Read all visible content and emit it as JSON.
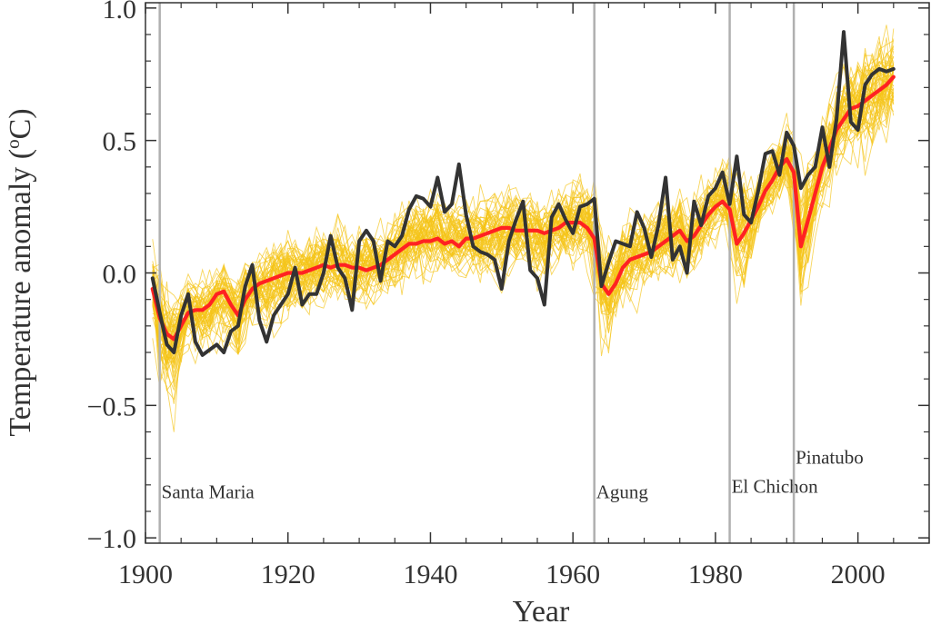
{
  "chart_data": {
    "type": "line",
    "title": "",
    "xlabel": "Year",
    "ylabel": "Temperature anomaly (°C)",
    "ylabel_parts": {
      "main": "Temperature anomaly (",
      "sup": "o",
      "end": "C)"
    },
    "xlim": [
      1900,
      2010
    ],
    "ylim": [
      -1.02,
      1.02
    ],
    "x_ticks": [
      {
        "value": 1900,
        "label": "1900"
      },
      {
        "value": 1920,
        "label": "1920"
      },
      {
        "value": 1940,
        "label": "1940"
      },
      {
        "value": 1960,
        "label": "1960"
      },
      {
        "value": 1980,
        "label": "1980"
      },
      {
        "value": 2000,
        "label": "2000"
      }
    ],
    "y_ticks": [
      {
        "value": -1.0,
        "label": "−1.0"
      },
      {
        "value": -0.5,
        "label": "−0.5"
      },
      {
        "value": 0.0,
        "label": "0.0"
      },
      {
        "value": 0.5,
        "label": "0.5"
      },
      {
        "value": 1.0,
        "label": "1.0"
      }
    ],
    "grid": false,
    "volcanoes": [
      {
        "name": "Santa Maria",
        "year": 1902,
        "label_y": -0.85
      },
      {
        "name": "Agung",
        "year": 1963,
        "label_y": -0.85
      },
      {
        "name": "El Chichon",
        "year": 1982,
        "label_y": -0.83
      },
      {
        "name": "Pinatubo",
        "year": 1991,
        "label_y": -0.72
      }
    ],
    "x": [
      1901,
      1902,
      1903,
      1904,
      1905,
      1906,
      1907,
      1908,
      1909,
      1910,
      1911,
      1912,
      1913,
      1914,
      1915,
      1916,
      1917,
      1918,
      1919,
      1920,
      1921,
      1922,
      1923,
      1924,
      1925,
      1926,
      1927,
      1928,
      1929,
      1930,
      1931,
      1932,
      1933,
      1934,
      1935,
      1936,
      1937,
      1938,
      1939,
      1940,
      1941,
      1942,
      1943,
      1944,
      1945,
      1946,
      1947,
      1948,
      1949,
      1950,
      1951,
      1952,
      1953,
      1954,
      1955,
      1956,
      1957,
      1958,
      1959,
      1960,
      1961,
      1962,
      1963,
      1964,
      1965,
      1966,
      1967,
      1968,
      1969,
      1970,
      1971,
      1972,
      1973,
      1974,
      1975,
      1976,
      1977,
      1978,
      1979,
      1980,
      1981,
      1982,
      1983,
      1984,
      1985,
      1986,
      1987,
      1988,
      1989,
      1990,
      1991,
      1992,
      1993,
      1994,
      1995,
      1996,
      1997,
      1998,
      1999,
      2000,
      2001,
      2002,
      2003,
      2004,
      2005
    ],
    "series": [
      {
        "key": "observations",
        "color": "#333333",
        "values": [
          -0.02,
          -0.15,
          -0.27,
          -0.3,
          -0.16,
          -0.08,
          -0.26,
          -0.31,
          -0.29,
          -0.27,
          -0.3,
          -0.22,
          -0.2,
          -0.05,
          0.03,
          -0.18,
          -0.26,
          -0.16,
          -0.12,
          -0.08,
          0.02,
          -0.12,
          -0.08,
          -0.08,
          0.0,
          0.14,
          0.02,
          -0.02,
          -0.14,
          0.12,
          0.16,
          0.12,
          -0.03,
          0.12,
          0.1,
          0.14,
          0.24,
          0.29,
          0.28,
          0.25,
          0.36,
          0.23,
          0.26,
          0.41,
          0.22,
          0.1,
          0.08,
          0.07,
          0.05,
          -0.06,
          0.12,
          0.2,
          0.27,
          0.01,
          -0.02,
          -0.12,
          0.21,
          0.26,
          0.2,
          0.15,
          0.25,
          0.26,
          0.28,
          -0.05,
          0.04,
          0.12,
          0.11,
          0.1,
          0.23,
          0.17,
          0.06,
          0.18,
          0.36,
          0.05,
          0.1,
          0.0,
          0.27,
          0.18,
          0.29,
          0.32,
          0.38,
          0.26,
          0.44,
          0.22,
          0.19,
          0.31,
          0.45,
          0.46,
          0.37,
          0.53,
          0.48,
          0.32,
          0.37,
          0.4,
          0.55,
          0.4,
          0.58,
          0.91,
          0.57,
          0.54,
          0.71,
          0.75,
          0.77,
          0.76,
          0.77
        ]
      },
      {
        "key": "ensemble-mean",
        "color": "#ff2222",
        "values": [
          -0.06,
          -0.17,
          -0.23,
          -0.25,
          -0.2,
          -0.15,
          -0.14,
          -0.14,
          -0.12,
          -0.08,
          -0.07,
          -0.12,
          -0.16,
          -0.1,
          -0.06,
          -0.04,
          -0.03,
          -0.02,
          -0.01,
          0.0,
          0.0,
          0.0,
          0.01,
          0.02,
          0.03,
          0.02,
          0.03,
          0.03,
          0.02,
          0.02,
          0.01,
          0.02,
          0.03,
          0.05,
          0.07,
          0.09,
          0.11,
          0.11,
          0.12,
          0.12,
          0.13,
          0.11,
          0.12,
          0.1,
          0.13,
          0.13,
          0.14,
          0.15,
          0.16,
          0.17,
          0.17,
          0.16,
          0.16,
          0.16,
          0.16,
          0.15,
          0.16,
          0.17,
          0.19,
          0.19,
          0.19,
          0.17,
          0.13,
          -0.04,
          -0.08,
          -0.04,
          0.02,
          0.05,
          0.06,
          0.07,
          0.08,
          0.1,
          0.12,
          0.14,
          0.16,
          0.12,
          0.14,
          0.18,
          0.22,
          0.25,
          0.27,
          0.24,
          0.11,
          0.15,
          0.2,
          0.25,
          0.31,
          0.35,
          0.4,
          0.43,
          0.38,
          0.1,
          0.2,
          0.3,
          0.4,
          0.47,
          0.54,
          0.58,
          0.62,
          0.63,
          0.65,
          0.67,
          0.69,
          0.71,
          0.74
        ]
      }
    ],
    "ensemble": {
      "color": "#f5c518",
      "member_count": 58
    }
  }
}
